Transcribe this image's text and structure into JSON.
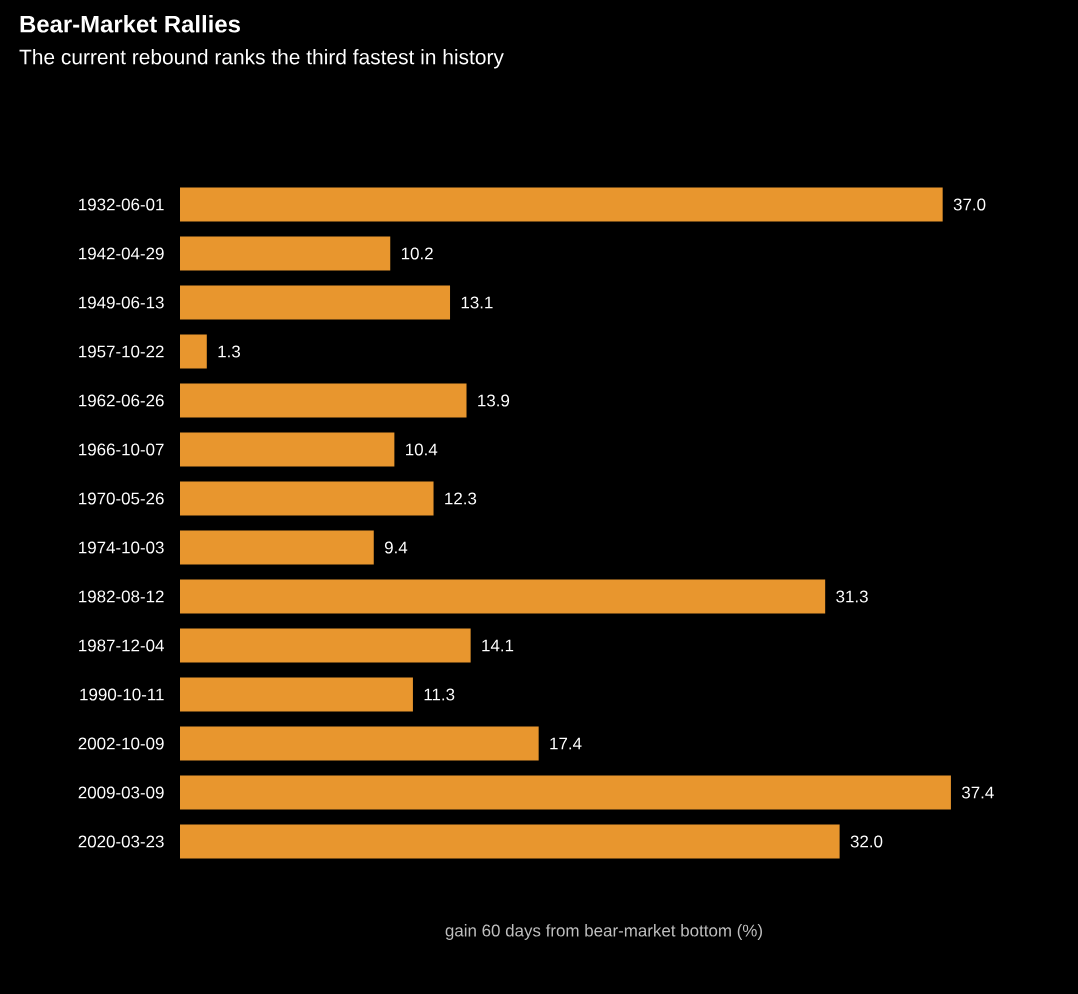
{
  "chart_data": {
    "type": "bar",
    "orientation": "horizontal",
    "title": "Bear-Market Rallies",
    "subtitle": "The current rebound ranks the third fastest in history",
    "xlabel": "gain 60 days from bear-market bottom (%)",
    "categories": [
      "1932-06-01",
      "1942-04-29",
      "1949-06-13",
      "1957-10-22",
      "1962-06-26",
      "1966-10-07",
      "1970-05-26",
      "1974-10-03",
      "1982-08-12",
      "1987-12-04",
      "1990-10-11",
      "2002-10-09",
      "2009-03-09",
      "2020-03-23"
    ],
    "values": [
      37.0,
      10.2,
      13.1,
      1.3,
      13.9,
      10.4,
      12.3,
      9.4,
      31.3,
      14.1,
      11.3,
      17.4,
      37.4,
      32.0
    ],
    "value_labels": [
      "37.0",
      "10.2",
      "13.1",
      "1.3",
      "13.9",
      "10.4",
      "12.3",
      "9.4",
      "31.3",
      "14.1",
      "11.3",
      "17.4",
      "37.4",
      "32.0"
    ],
    "color": "#e8962e"
  }
}
